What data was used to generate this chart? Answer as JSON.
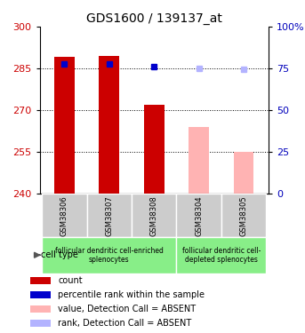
{
  "title": "GDS1600 / 139137_at",
  "samples": [
    "GSM38306",
    "GSM38307",
    "GSM38308",
    "GSM38304",
    "GSM38305"
  ],
  "bar_values": [
    289,
    289.5,
    272,
    0,
    0
  ],
  "absent_bar_values": [
    0,
    0,
    0,
    264,
    255
  ],
  "absent_bar_color": "#ffb3b3",
  "rank_markers": [
    286.5,
    286.5,
    285.5,
    0,
    0
  ],
  "rank_absent": [
    0,
    0,
    0,
    285.0,
    284.5
  ],
  "rank_absent_color": "#b3b3ff",
  "rank_present_color": "#0000cc",
  "bar_present_color": "#cc0000",
  "ymin": 240,
  "ymax": 300,
  "yticks_left": [
    240,
    255,
    270,
    285,
    300
  ],
  "yticks_right": [
    0,
    25,
    50,
    75,
    100
  ],
  "grid_values": [
    285,
    270,
    255
  ],
  "cell_type_groups": [
    {
      "label": "follicular dendritic cell-enriched\nsplenocytes",
      "start": 0,
      "end": 3
    },
    {
      "label": "follicular dendritic cell-\ndepleted splenocytes",
      "start": 3,
      "end": 5
    }
  ],
  "cell_type_color": "#88ee88",
  "sample_box_color": "#cccccc",
  "legend_items": [
    {
      "label": "count",
      "color": "#cc0000"
    },
    {
      "label": "percentile rank within the sample",
      "color": "#0000cc"
    },
    {
      "label": "value, Detection Call = ABSENT",
      "color": "#ffb3b3"
    },
    {
      "label": "rank, Detection Call = ABSENT",
      "color": "#b3b3ff"
    }
  ]
}
